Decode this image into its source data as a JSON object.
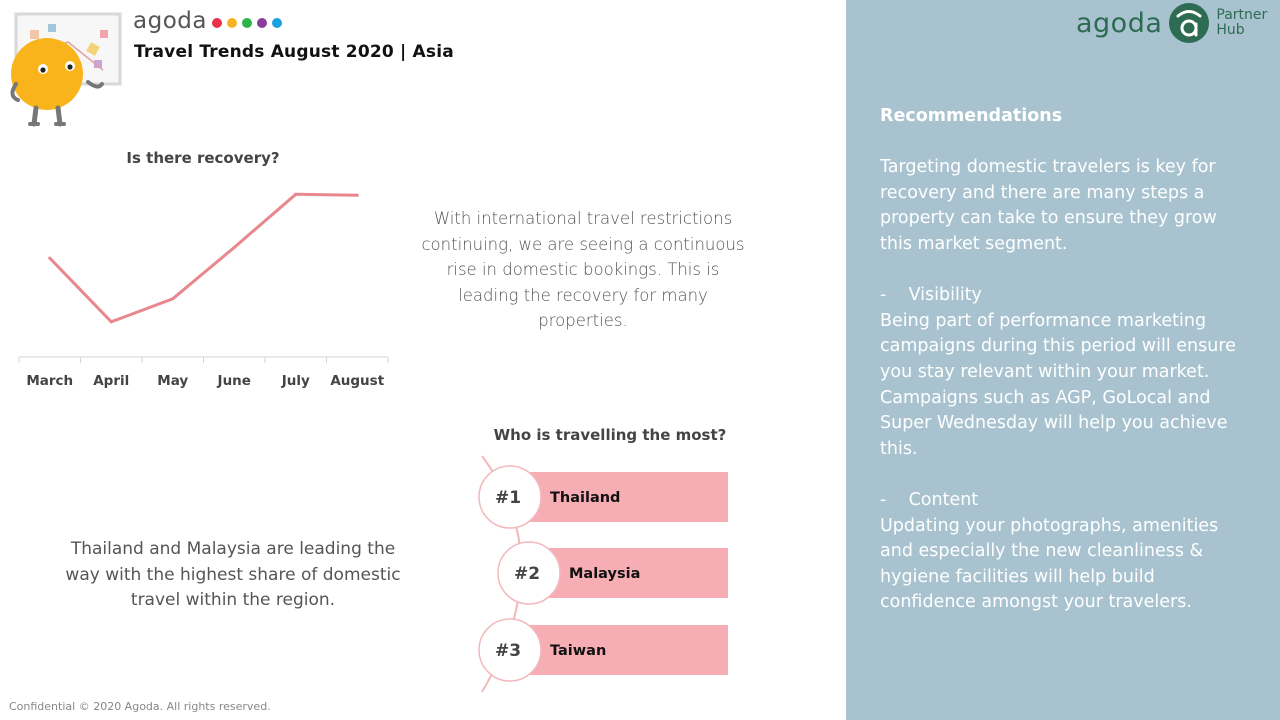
{
  "brand": {
    "name": "agoda",
    "dot_colors": [
      "#e8334a",
      "#f7b321",
      "#2cb34a",
      "#8b3d9c",
      "#1ba1e2"
    ]
  },
  "title": "Travel Trends August 2020 | Asia",
  "chart_data": {
    "type": "line",
    "title": "Is there recovery?",
    "categories": [
      "March",
      "April",
      "May",
      "June",
      "July",
      "August"
    ],
    "series": [
      {
        "values": [
          44,
          8,
          21,
          50,
          80,
          79.5
        ]
      }
    ],
    "ylim": [
      0,
      100
    ],
    "grid": false,
    "line_color": "#e8888d"
  },
  "paragraph_recovery": "With international travel restrictions continuing, we are seeing a continuous rise in domestic bookings. This is leading the recovery for many properties.",
  "ranking": {
    "title": "Who is travelling the most?",
    "items": [
      {
        "rank": "#1",
        "country": "Thailand"
      },
      {
        "rank": "#2",
        "country": "Malaysia"
      },
      {
        "rank": "#3",
        "country": "Taiwan"
      }
    ],
    "bar_color": "#f6aeb4",
    "circle_stroke": "#f2b8bc"
  },
  "paragraph_share": "Thailand and Malaysia are leading the way with the highest share of domestic travel within the region.",
  "footer": "Confidential © 2020 Agoda. All rights reserved.",
  "partner_logo": {
    "word": "agoda",
    "hub_line1": "Partner",
    "hub_line2": "Hub",
    "color": "#2d6b52"
  },
  "recommendations": {
    "heading": "Recommendations",
    "intro": "Targeting domestic travelers is key for recovery and there are many steps a property can take to ensure they grow this market segment.",
    "items": [
      {
        "bullet": "-    Visibility",
        "text": "Being part of performance marketing campaigns during this period will ensure you stay relevant within your market. Campaigns such as AGP, GoLocal and Super Wednesday will help you achieve this."
      },
      {
        "bullet": "-    Content",
        "text": "Updating your photographs, amenities and especially the new cleanliness & hygiene facilities will help build confidence amongst your travelers."
      }
    ]
  }
}
